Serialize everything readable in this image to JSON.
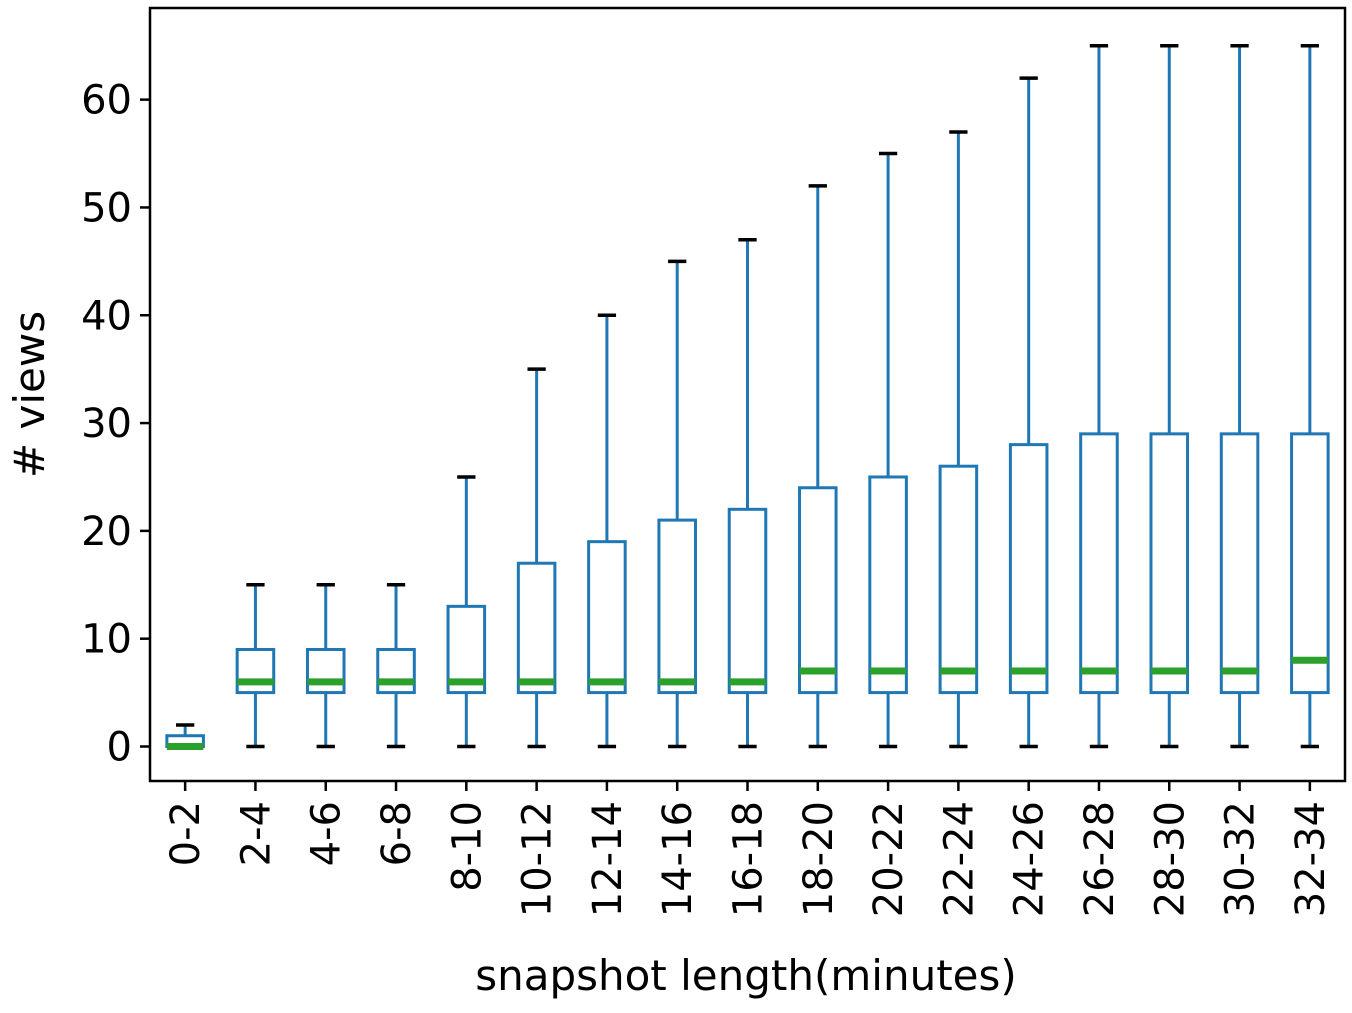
{
  "chart_data": {
    "type": "box",
    "xlabel": "snapshot length(minutes)",
    "ylabel": "# views",
    "ylim": [
      -3.2,
      68.5
    ],
    "yticks": [
      0,
      10,
      20,
      30,
      40,
      50,
      60
    ],
    "grid": false,
    "colors": {
      "box": "#1f77b4",
      "median": "#2ca02c",
      "cap": "#000000"
    },
    "categories": [
      "0-2",
      "2-4",
      "4-6",
      "6-8",
      "8-10",
      "10-12",
      "12-14",
      "14-16",
      "16-18",
      "18-20",
      "20-22",
      "22-24",
      "24-26",
      "26-28",
      "28-30",
      "30-32",
      "32-34"
    ],
    "boxes": [
      {
        "whislo": 0,
        "q1": 0,
        "med": 0,
        "q3": 1,
        "whishi": 2
      },
      {
        "whislo": 0,
        "q1": 5,
        "med": 6,
        "q3": 9,
        "whishi": 15
      },
      {
        "whislo": 0,
        "q1": 5,
        "med": 6,
        "q3": 9,
        "whishi": 15
      },
      {
        "whislo": 0,
        "q1": 5,
        "med": 6,
        "q3": 9,
        "whishi": 15
      },
      {
        "whislo": 0,
        "q1": 5,
        "med": 6,
        "q3": 13,
        "whishi": 25
      },
      {
        "whislo": 0,
        "q1": 5,
        "med": 6,
        "q3": 17,
        "whishi": 35
      },
      {
        "whislo": 0,
        "q1": 5,
        "med": 6,
        "q3": 19,
        "whishi": 40
      },
      {
        "whislo": 0,
        "q1": 5,
        "med": 6,
        "q3": 21,
        "whishi": 45
      },
      {
        "whislo": 0,
        "q1": 5,
        "med": 6,
        "q3": 22,
        "whishi": 47
      },
      {
        "whislo": 0,
        "q1": 5,
        "med": 7,
        "q3": 24,
        "whishi": 52
      },
      {
        "whislo": 0,
        "q1": 5,
        "med": 7,
        "q3": 25,
        "whishi": 55
      },
      {
        "whislo": 0,
        "q1": 5,
        "med": 7,
        "q3": 26,
        "whishi": 57
      },
      {
        "whislo": 0,
        "q1": 5,
        "med": 7,
        "q3": 28,
        "whishi": 62
      },
      {
        "whislo": 0,
        "q1": 5,
        "med": 7,
        "q3": 29,
        "whishi": 65
      },
      {
        "whislo": 0,
        "q1": 5,
        "med": 7,
        "q3": 29,
        "whishi": 65
      },
      {
        "whislo": 0,
        "q1": 5,
        "med": 7,
        "q3": 29,
        "whishi": 65
      },
      {
        "whislo": 0,
        "q1": 5,
        "med": 8,
        "q3": 29,
        "whishi": 65
      }
    ]
  }
}
